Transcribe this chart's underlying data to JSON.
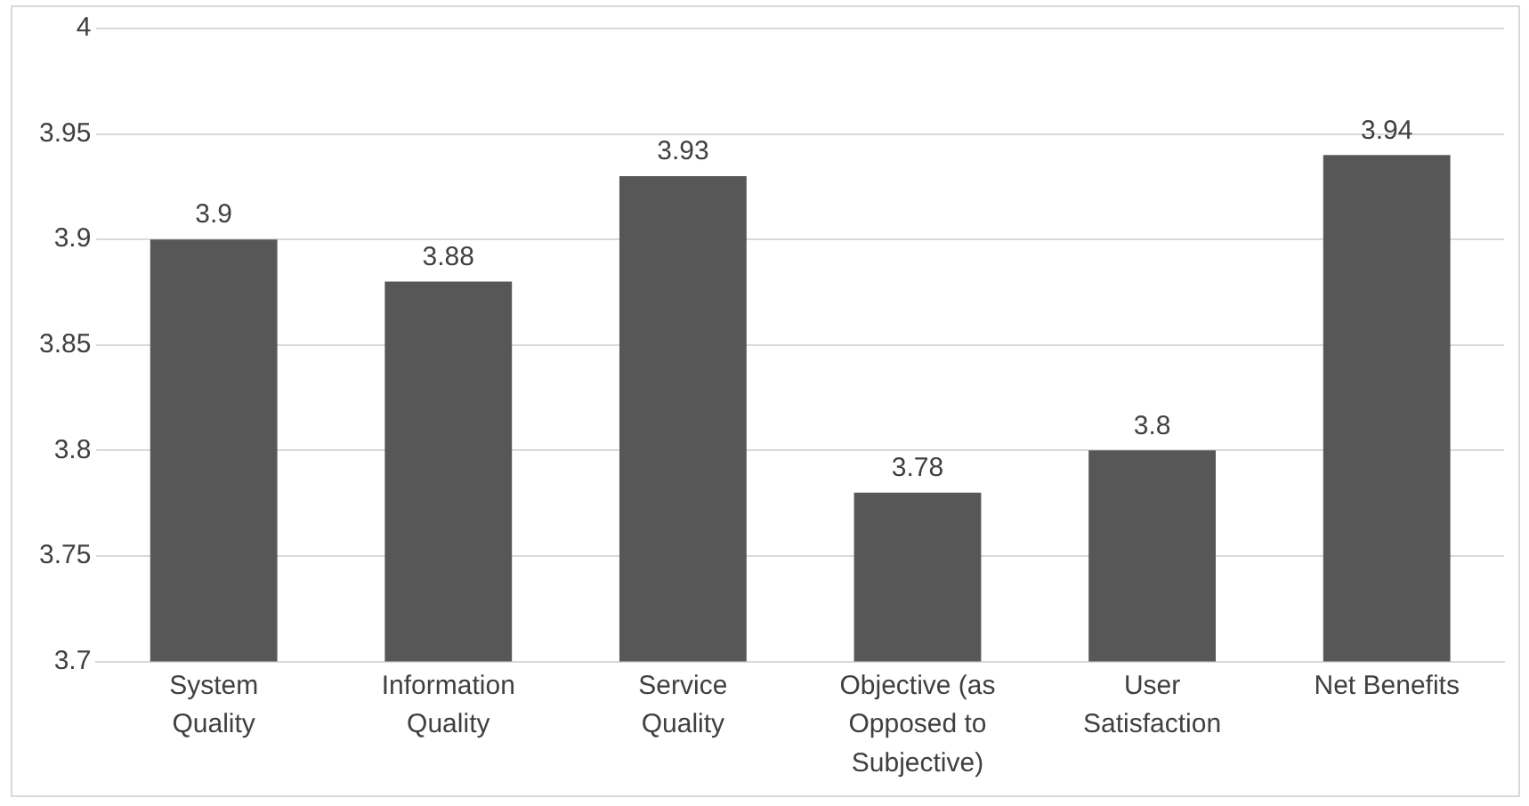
{
  "chart_data": {
    "type": "bar",
    "categories": [
      "System Quality",
      "Information Quality",
      "Service Quality",
      "Objective (as Opposed to Subjective)",
      "User Satisfaction",
      "Net Benefits"
    ],
    "values": [
      3.9,
      3.88,
      3.93,
      3.78,
      3.8,
      3.94
    ],
    "color": "#575757",
    "ylim": [
      3.7,
      4
    ],
    "yticks": [
      3.7,
      3.75,
      3.8,
      3.85,
      3.9,
      3.95,
      4
    ],
    "grid": "y",
    "data_labels": true
  }
}
